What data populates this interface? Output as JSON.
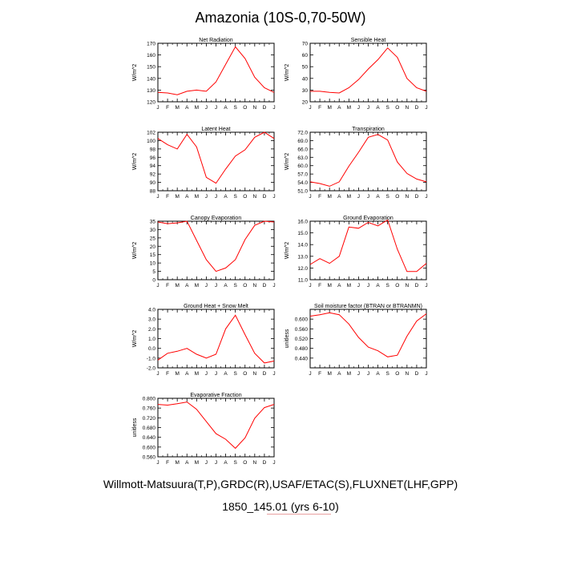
{
  "title": "Amazonia (10S-0,70-50W)",
  "footer": {
    "line1": "Willmott-Matsuura(T,P),GRDC(R),USAF/ETAC(S),FLUXNET(LHF,GPP)",
    "line2": "1850_145.01 (yrs 6-10)"
  },
  "colors": {
    "line": "#ff0000",
    "axis": "#000000"
  },
  "chart_data": [
    {
      "type": "line",
      "title": "Net Radiation",
      "ylabel": "W/m^2",
      "categories": [
        "J",
        "F",
        "M",
        "A",
        "M",
        "J",
        "J",
        "A",
        "S",
        "O",
        "N",
        "D",
        "J"
      ],
      "ylim": [
        120,
        170
      ],
      "yticks": [
        "120",
        "130",
        "140",
        "150",
        "160",
        "170"
      ],
      "values": [
        128,
        127.5,
        126,
        129,
        130,
        129,
        137,
        152,
        167,
        157,
        141,
        132,
        128
      ]
    },
    {
      "type": "line",
      "title": "Sensible Heat",
      "ylabel": "W/m^2",
      "categories": [
        "J",
        "F",
        "M",
        "A",
        "M",
        "J",
        "J",
        "A",
        "S",
        "O",
        "N",
        "D",
        "J"
      ],
      "ylim": [
        20,
        70
      ],
      "yticks": [
        "20",
        "30",
        "40",
        "50",
        "60",
        "70"
      ],
      "values": [
        29,
        29,
        28,
        27.5,
        32,
        39,
        48,
        56,
        66,
        58,
        40,
        32,
        29
      ]
    },
    {
      "type": "line",
      "title": "Latent Heat",
      "ylabel": "W/m^2",
      "categories": [
        "J",
        "F",
        "M",
        "A",
        "M",
        "J",
        "J",
        "A",
        "S",
        "O",
        "N",
        "D",
        "J"
      ],
      "ylim": [
        88,
        102
      ],
      "yticks": [
        "88",
        "90",
        "92",
        "94",
        "96",
        "98",
        "100",
        "102"
      ],
      "values": [
        100.5,
        99,
        98,
        101.5,
        98.5,
        91.2,
        89.8,
        93.2,
        96.3,
        97.8,
        100.8,
        102,
        100.5
      ]
    },
    {
      "type": "line",
      "title": "Transpiration",
      "ylabel": "W/m^2",
      "categories": [
        "J",
        "F",
        "M",
        "A",
        "M",
        "J",
        "J",
        "A",
        "S",
        "O",
        "N",
        "D",
        "J"
      ],
      "ylim": [
        51,
        72
      ],
      "yticks": [
        "51.0",
        "54.0",
        "57.0",
        "60.0",
        "63.0",
        "66.0",
        "69.0",
        "72.0"
      ],
      "values": [
        54.2,
        53.6,
        52.6,
        54.2,
        59.8,
        64.8,
        70.2,
        71.2,
        69.2,
        61.3,
        57.2,
        55.2,
        54.2
      ]
    },
    {
      "type": "line",
      "title": "Canopy Evaporation",
      "ylabel": "W/m^2",
      "categories": [
        "J",
        "F",
        "M",
        "A",
        "M",
        "J",
        "J",
        "A",
        "S",
        "O",
        "N",
        "D",
        "J"
      ],
      "ylim": [
        0,
        35
      ],
      "yticks": [
        "0",
        "5",
        "10",
        "15",
        "20",
        "25",
        "30",
        "35"
      ],
      "values": [
        34.5,
        33.5,
        34,
        35,
        23.5,
        12,
        5,
        7,
        12,
        24,
        32.5,
        35,
        34.5
      ]
    },
    {
      "type": "line",
      "title": "Ground Evaporation",
      "ylabel": "W/m^2",
      "categories": [
        "J",
        "F",
        "M",
        "A",
        "M",
        "J",
        "J",
        "A",
        "S",
        "O",
        "N",
        "D",
        "J"
      ],
      "ylim": [
        11,
        16
      ],
      "yticks": [
        "11.0",
        "12.0",
        "13.0",
        "14.0",
        "15.0",
        "16.0"
      ],
      "values": [
        12.3,
        12.8,
        12.4,
        13,
        15.5,
        15.4,
        15.9,
        15.6,
        16.1,
        13.6,
        11.7,
        11.7,
        12.4
      ]
    },
    {
      "type": "line",
      "title": "Ground Heat + Snow Melt",
      "ylabel": "W/m^2",
      "categories": [
        "J",
        "F",
        "M",
        "A",
        "M",
        "J",
        "J",
        "A",
        "S",
        "O",
        "N",
        "D",
        "J"
      ],
      "ylim": [
        -2,
        4
      ],
      "yticks": [
        "-2.0",
        "-1.0",
        "0.0",
        "1.0",
        "2.0",
        "3.0",
        "4.0"
      ],
      "values": [
        -1.2,
        -0.5,
        -0.3,
        0,
        -0.6,
        -1,
        -0.6,
        2,
        3.4,
        1.4,
        -0.5,
        -1.5,
        -1.3
      ]
    },
    {
      "type": "line",
      "title": "Soil moisture factor (BTRAN or BTRANMN)",
      "ylabel": "unitless",
      "categories": [
        "J",
        "F",
        "M",
        "A",
        "M",
        "J",
        "J",
        "A",
        "S",
        "O",
        "N",
        "D",
        "J"
      ],
      "ylim": [
        0.4,
        0.64
      ],
      "yticks": [
        "0.440",
        "0.480",
        "0.520",
        "0.560",
        "0.600"
      ],
      "values": [
        0.612,
        0.618,
        0.626,
        0.618,
        0.58,
        0.525,
        0.485,
        0.47,
        0.445,
        0.452,
        0.53,
        0.592,
        0.622
      ]
    },
    {
      "type": "line",
      "title": "Evaporative Fraction",
      "ylabel": "unitless",
      "categories": [
        "J",
        "F",
        "M",
        "A",
        "M",
        "J",
        "J",
        "A",
        "S",
        "O",
        "N",
        "D",
        "J"
      ],
      "ylim": [
        0.56,
        0.8
      ],
      "yticks": [
        "0.560",
        "0.600",
        "0.640",
        "0.680",
        "0.720",
        "0.760",
        "0.800"
      ],
      "values": [
        0.775,
        0.772,
        0.778,
        0.785,
        0.755,
        0.705,
        0.655,
        0.632,
        0.595,
        0.638,
        0.718,
        0.762,
        0.775
      ]
    }
  ]
}
